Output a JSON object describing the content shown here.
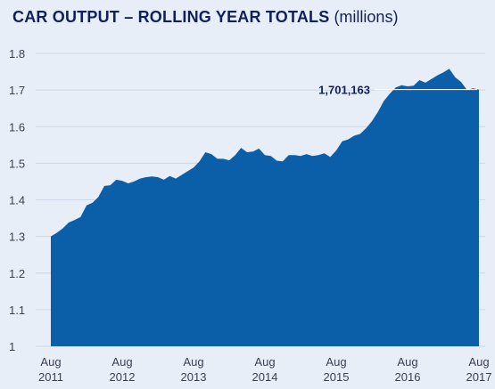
{
  "chart_data": {
    "type": "area",
    "title": "CAR OUTPUT – ROLLING YEAR TOTALS",
    "unit_note": "(millions)",
    "ylim": [
      1,
      1.8
    ],
    "y_ticks": [
      "1",
      "1.1",
      "1.2",
      "1.3",
      "1.4",
      "1.5",
      "1.6",
      "1.7",
      "1.8"
    ],
    "x_ticks": [
      {
        "month": "Aug",
        "year": "2011"
      },
      {
        "month": "Aug",
        "year": "2012"
      },
      {
        "month": "Aug",
        "year": "2013"
      },
      {
        "month": "Aug",
        "year": "2014"
      },
      {
        "month": "Aug",
        "year": "2015"
      },
      {
        "month": "Aug",
        "year": "2016"
      },
      {
        "month": "Aug",
        "year": "2017"
      }
    ],
    "grid": true,
    "fill_color": "#0b5ea8",
    "x_start": "Aug 2011",
    "x_end": "Aug 2017",
    "values": [
      1.3,
      1.31,
      1.322,
      1.338,
      1.345,
      1.353,
      1.385,
      1.392,
      1.408,
      1.438,
      1.44,
      1.455,
      1.452,
      1.445,
      1.45,
      1.458,
      1.462,
      1.464,
      1.462,
      1.455,
      1.465,
      1.458,
      1.468,
      1.478,
      1.488,
      1.505,
      1.53,
      1.525,
      1.512,
      1.512,
      1.508,
      1.522,
      1.542,
      1.53,
      1.532,
      1.54,
      1.522,
      1.52,
      1.507,
      1.505,
      1.522,
      1.522,
      1.52,
      1.525,
      1.52,
      1.522,
      1.527,
      1.517,
      1.535,
      1.56,
      1.565,
      1.575,
      1.58,
      1.595,
      1.615,
      1.64,
      1.67,
      1.69,
      1.707,
      1.713,
      1.71,
      1.712,
      1.727,
      1.72,
      1.73,
      1.74,
      1.748,
      1.758,
      1.735,
      1.722,
      1.7,
      1.705,
      1.701
    ],
    "annotation": {
      "label": "1,701,163",
      "value": 1.701163
    }
  }
}
